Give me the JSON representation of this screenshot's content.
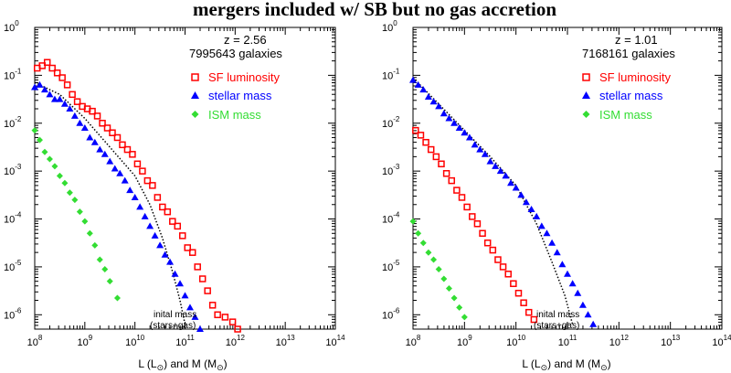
{
  "title": "mergers included w/ SB but no gas accretion",
  "colors": {
    "sf": "#ff0000",
    "stellar": "#0000ff",
    "ism": "#33dd33",
    "initial": "#000000"
  },
  "chart_data": [
    {
      "type": "scatter",
      "redshift_label": "z = 2.56",
      "galaxies_label": "7995643 galaxies",
      "xlabel": "L (L⊙) and M (M⊙)",
      "x_scale": "log",
      "y_scale": "log",
      "xlim": [
        8,
        14
      ],
      "ylim": [
        -6.3,
        0
      ],
      "x_ticks": [
        {
          "base": "10",
          "exp": "8"
        },
        {
          "base": "10",
          "exp": "9"
        },
        {
          "base": "10",
          "exp": "10"
        },
        {
          "base": "10",
          "exp": "11"
        },
        {
          "base": "10",
          "exp": "12"
        },
        {
          "base": "10",
          "exp": "13"
        },
        {
          "base": "10",
          "exp": "14"
        }
      ],
      "y_ticks": [
        {
          "base": "10",
          "exp": "0"
        },
        {
          "base": "10",
          "exp": "-1"
        },
        {
          "base": "10",
          "exp": "-2"
        },
        {
          "base": "10",
          "exp": "-3"
        },
        {
          "base": "10",
          "exp": "-4"
        },
        {
          "base": "10",
          "exp": "-5"
        },
        {
          "base": "10",
          "exp": "-6"
        }
      ],
      "legend_placement": "top-right",
      "series": [
        {
          "name": "SF luminosity",
          "marker": "square-open",
          "color_key": "sf",
          "points": [
            [
              8.05,
              -0.85
            ],
            [
              8.15,
              -0.8
            ],
            [
              8.25,
              -0.73
            ],
            [
              8.35,
              -0.85
            ],
            [
              8.45,
              -0.95
            ],
            [
              8.55,
              -1.05
            ],
            [
              8.65,
              -1.2
            ],
            [
              8.75,
              -1.4
            ],
            [
              8.85,
              -1.55
            ],
            [
              8.95,
              -1.65
            ],
            [
              9.05,
              -1.7
            ],
            [
              9.15,
              -1.75
            ],
            [
              9.25,
              -1.85
            ],
            [
              9.35,
              -2.0
            ],
            [
              9.45,
              -2.1
            ],
            [
              9.55,
              -2.2
            ],
            [
              9.65,
              -2.3
            ],
            [
              9.75,
              -2.45
            ],
            [
              9.85,
              -2.55
            ],
            [
              9.95,
              -2.65
            ],
            [
              10.05,
              -2.85
            ],
            [
              10.15,
              -3.0
            ],
            [
              10.25,
              -3.2
            ],
            [
              10.35,
              -3.3
            ],
            [
              10.45,
              -3.55
            ],
            [
              10.55,
              -3.75
            ],
            [
              10.65,
              -3.85
            ],
            [
              10.75,
              -4.05
            ],
            [
              10.85,
              -4.15
            ],
            [
              10.95,
              -4.35
            ],
            [
              11.05,
              -4.6
            ],
            [
              11.15,
              -4.7
            ],
            [
              11.25,
              -5.0
            ],
            [
              11.35,
              -5.25
            ],
            [
              11.45,
              -5.5
            ],
            [
              11.55,
              -5.8
            ],
            [
              11.65,
              -6.0
            ],
            [
              11.8,
              -6.05
            ],
            [
              11.95,
              -6.15
            ],
            [
              12.05,
              -6.3
            ]
          ]
        },
        {
          "name": "stellar mass",
          "marker": "triangle",
          "color_key": "stellar",
          "points": [
            [
              8.0,
              -1.25
            ],
            [
              8.1,
              -1.2
            ],
            [
              8.2,
              -1.3
            ],
            [
              8.3,
              -1.4
            ],
            [
              8.4,
              -1.5
            ],
            [
              8.5,
              -1.5
            ],
            [
              8.6,
              -1.6
            ],
            [
              8.7,
              -1.7
            ],
            [
              8.8,
              -1.85
            ],
            [
              8.9,
              -2.0
            ],
            [
              9.0,
              -2.1
            ],
            [
              9.1,
              -2.3
            ],
            [
              9.2,
              -2.4
            ],
            [
              9.3,
              -2.55
            ],
            [
              9.4,
              -2.65
            ],
            [
              9.5,
              -2.8
            ],
            [
              9.6,
              -2.95
            ],
            [
              9.7,
              -3.05
            ],
            [
              9.8,
              -3.2
            ],
            [
              9.9,
              -3.4
            ],
            [
              10.0,
              -3.55
            ],
            [
              10.1,
              -3.75
            ],
            [
              10.2,
              -3.95
            ],
            [
              10.3,
              -4.15
            ],
            [
              10.4,
              -4.35
            ],
            [
              10.5,
              -4.55
            ],
            [
              10.6,
              -4.75
            ],
            [
              10.7,
              -4.9
            ],
            [
              10.8,
              -5.15
            ],
            [
              10.9,
              -5.35
            ],
            [
              11.0,
              -5.6
            ],
            [
              11.1,
              -5.85
            ],
            [
              11.2,
              -6.05
            ],
            [
              11.3,
              -6.3
            ]
          ]
        },
        {
          "name": "ISM mass",
          "marker": "diamond",
          "color_key": "ism",
          "points": [
            [
              8.0,
              -2.15
            ],
            [
              8.1,
              -2.35
            ],
            [
              8.2,
              -2.6
            ],
            [
              8.3,
              -2.75
            ],
            [
              8.4,
              -2.9
            ],
            [
              8.5,
              -3.1
            ],
            [
              8.6,
              -3.25
            ],
            [
              8.7,
              -3.45
            ],
            [
              8.8,
              -3.6
            ],
            [
              8.9,
              -3.85
            ],
            [
              9.0,
              -4.05
            ],
            [
              9.1,
              -4.3
            ],
            [
              9.2,
              -4.55
            ],
            [
              9.3,
              -4.85
            ],
            [
              9.4,
              -5.05
            ],
            [
              9.5,
              -5.3
            ],
            [
              9.65,
              -5.65
            ]
          ]
        }
      ],
      "initial_curve": {
        "label_line1": "inital mass",
        "label_line2": "(stars+gas)",
        "points": [
          [
            8.0,
            -1.15
          ],
          [
            8.5,
            -1.4
          ],
          [
            9.0,
            -1.9
          ],
          [
            9.5,
            -2.5
          ],
          [
            10.0,
            -3.1
          ],
          [
            10.3,
            -3.7
          ],
          [
            10.55,
            -4.4
          ],
          [
            10.75,
            -5.1
          ],
          [
            10.9,
            -5.7
          ],
          [
            11.0,
            -6.2
          ]
        ]
      }
    },
    {
      "type": "scatter",
      "redshift_label": "z = 1.01",
      "galaxies_label": "7168161 galaxies",
      "xlabel": "L (L⊙) and M (M⊙)",
      "x_scale": "log",
      "y_scale": "log",
      "xlim": [
        8,
        14
      ],
      "ylim": [
        -6.3,
        0
      ],
      "x_ticks": [
        {
          "base": "10",
          "exp": "8"
        },
        {
          "base": "10",
          "exp": "9"
        },
        {
          "base": "10",
          "exp": "10"
        },
        {
          "base": "10",
          "exp": "11"
        },
        {
          "base": "10",
          "exp": "12"
        },
        {
          "base": "10",
          "exp": "13"
        },
        {
          "base": "10",
          "exp": "14"
        }
      ],
      "y_ticks": [
        {
          "base": "10",
          "exp": "0"
        },
        {
          "base": "10",
          "exp": "-1"
        },
        {
          "base": "10",
          "exp": "-2"
        },
        {
          "base": "10",
          "exp": "-3"
        },
        {
          "base": "10",
          "exp": "-4"
        },
        {
          "base": "10",
          "exp": "-5"
        },
        {
          "base": "10",
          "exp": "-6"
        }
      ],
      "legend_placement": "top-right",
      "series": [
        {
          "name": "SF luminosity",
          "marker": "square-open",
          "color_key": "sf",
          "points": [
            [
              8.05,
              -2.15
            ],
            [
              8.15,
              -2.25
            ],
            [
              8.25,
              -2.4
            ],
            [
              8.35,
              -2.55
            ],
            [
              8.45,
              -2.7
            ],
            [
              8.55,
              -2.85
            ],
            [
              8.65,
              -3.05
            ],
            [
              8.75,
              -3.2
            ],
            [
              8.85,
              -3.4
            ],
            [
              8.95,
              -3.55
            ],
            [
              9.05,
              -3.75
            ],
            [
              9.15,
              -3.95
            ],
            [
              9.25,
              -4.1
            ],
            [
              9.35,
              -4.3
            ],
            [
              9.45,
              -4.5
            ],
            [
              9.55,
              -4.65
            ],
            [
              9.65,
              -4.85
            ],
            [
              9.75,
              -5.0
            ],
            [
              9.85,
              -5.15
            ],
            [
              9.95,
              -5.35
            ],
            [
              10.05,
              -5.55
            ],
            [
              10.15,
              -5.75
            ],
            [
              10.25,
              -5.95
            ],
            [
              10.35,
              -6.1
            ]
          ]
        },
        {
          "name": "stellar mass",
          "marker": "triangle",
          "color_key": "stellar",
          "points": [
            [
              8.0,
              -1.1
            ],
            [
              8.1,
              -1.2
            ],
            [
              8.2,
              -1.3
            ],
            [
              8.3,
              -1.45
            ],
            [
              8.4,
              -1.55
            ],
            [
              8.5,
              -1.65
            ],
            [
              8.6,
              -1.8
            ],
            [
              8.7,
              -1.9
            ],
            [
              8.8,
              -2.0
            ],
            [
              8.9,
              -2.1
            ],
            [
              9.0,
              -2.2
            ],
            [
              9.1,
              -2.3
            ],
            [
              9.2,
              -2.45
            ],
            [
              9.3,
              -2.55
            ],
            [
              9.4,
              -2.65
            ],
            [
              9.5,
              -2.8
            ],
            [
              9.6,
              -2.9
            ],
            [
              9.7,
              -3.0
            ],
            [
              9.8,
              -3.1
            ],
            [
              9.9,
              -3.25
            ],
            [
              10.0,
              -3.35
            ],
            [
              10.1,
              -3.5
            ],
            [
              10.2,
              -3.65
            ],
            [
              10.3,
              -3.8
            ],
            [
              10.4,
              -3.95
            ],
            [
              10.5,
              -4.15
            ],
            [
              10.6,
              -4.3
            ],
            [
              10.7,
              -4.5
            ],
            [
              10.8,
              -4.7
            ],
            [
              10.9,
              -4.95
            ],
            [
              11.0,
              -5.15
            ],
            [
              11.1,
              -5.35
            ],
            [
              11.2,
              -5.55
            ],
            [
              11.3,
              -5.8
            ],
            [
              11.4,
              -6.0
            ],
            [
              11.5,
              -6.2
            ]
          ]
        },
        {
          "name": "ISM mass",
          "marker": "diamond",
          "color_key": "ism",
          "points": [
            [
              8.0,
              -4.05
            ],
            [
              8.1,
              -4.3
            ],
            [
              8.2,
              -4.5
            ],
            [
              8.3,
              -4.7
            ],
            [
              8.4,
              -4.85
            ],
            [
              8.5,
              -5.05
            ],
            [
              8.6,
              -5.25
            ],
            [
              8.7,
              -5.45
            ],
            [
              8.8,
              -5.65
            ],
            [
              8.9,
              -5.85
            ],
            [
              9.0,
              -6.05
            ]
          ]
        }
      ],
      "initial_curve": {
        "label_line1": "inital mass",
        "label_line2": "(stars+gas)",
        "points": [
          [
            8.0,
            -1.05
          ],
          [
            8.5,
            -1.6
          ],
          [
            9.0,
            -2.15
          ],
          [
            9.5,
            -2.7
          ],
          [
            10.0,
            -3.3
          ],
          [
            10.4,
            -4.1
          ],
          [
            10.7,
            -4.9
          ],
          [
            10.95,
            -5.6
          ],
          [
            11.1,
            -6.2
          ]
        ]
      }
    }
  ]
}
